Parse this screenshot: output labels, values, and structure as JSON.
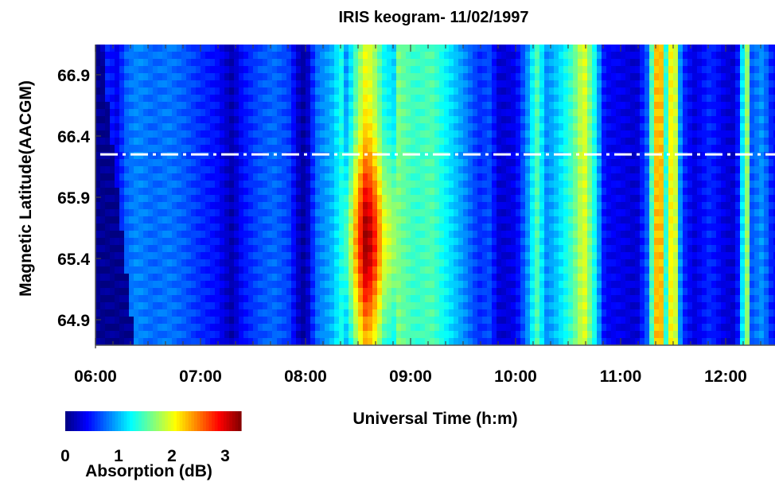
{
  "chart_data": {
    "type": "heatmap",
    "title": "IRIS keogram- 11/02/1997",
    "xlabel": "Universal Time (h:m)",
    "ylabel": "Magnetic Latitude(AACGM)",
    "x_ticks": [
      "06:00",
      "07:00",
      "08:00",
      "09:00",
      "10:00",
      "11:00",
      "12:00"
    ],
    "y_ticks": [
      "64.9",
      "65.4",
      "65.9",
      "66.4",
      "66.9"
    ],
    "xlim_hours": [
      6.0,
      12.5
    ],
    "ylim": [
      64.75,
      67.08
    ],
    "colorbar": {
      "label": "Absorption (dB)",
      "ticks": [
        "0",
        "1",
        "2",
        "3"
      ],
      "range": [
        0,
        3.3
      ],
      "colormap": "jet"
    },
    "reference_line": {
      "latitude": 66.25,
      "style": "dash-dot",
      "color": "#ffffff"
    },
    "time_profile": [
      {
        "t": 6.0,
        "v": 0.05
      },
      {
        "t": 6.05,
        "v": 0.05
      },
      {
        "t": 6.12,
        "v": 0.55
      },
      {
        "t": 6.2,
        "v": 0.35
      },
      {
        "t": 6.3,
        "v": 0.75
      },
      {
        "t": 6.4,
        "v": 0.85
      },
      {
        "t": 6.55,
        "v": 0.75
      },
      {
        "t": 6.7,
        "v": 0.8
      },
      {
        "t": 6.85,
        "v": 0.7
      },
      {
        "t": 7.0,
        "v": 0.55
      },
      {
        "t": 7.15,
        "v": 0.45
      },
      {
        "t": 7.3,
        "v": 0.15
      },
      {
        "t": 7.4,
        "v": 0.45
      },
      {
        "t": 7.55,
        "v": 0.65
      },
      {
        "t": 7.7,
        "v": 0.75
      },
      {
        "t": 7.85,
        "v": 0.6
      },
      {
        "t": 7.95,
        "v": 0.15
      },
      {
        "t": 8.0,
        "v": 0.1
      },
      {
        "t": 8.1,
        "v": 0.75
      },
      {
        "t": 8.25,
        "v": 1.0
      },
      {
        "t": 8.4,
        "v": 1.5
      },
      {
        "t": 8.5,
        "v": 2.6
      },
      {
        "t": 8.58,
        "v": 3.3
      },
      {
        "t": 8.66,
        "v": 2.8
      },
      {
        "t": 8.75,
        "v": 2.0
      },
      {
        "t": 8.9,
        "v": 1.6
      },
      {
        "t": 9.05,
        "v": 1.4
      },
      {
        "t": 9.2,
        "v": 1.5
      },
      {
        "t": 9.35,
        "v": 1.2
      },
      {
        "t": 9.5,
        "v": 0.9
      },
      {
        "t": 9.65,
        "v": 0.55
      },
      {
        "t": 9.75,
        "v": 0.65
      },
      {
        "t": 9.85,
        "v": 0.25
      },
      {
        "t": 10.0,
        "v": 0.35
      },
      {
        "t": 10.1,
        "v": 0.8
      },
      {
        "t": 10.2,
        "v": 1.5
      },
      {
        "t": 10.3,
        "v": 0.85
      },
      {
        "t": 10.45,
        "v": 1.2
      },
      {
        "t": 10.55,
        "v": 1.5
      },
      {
        "t": 10.65,
        "v": 2.0
      },
      {
        "t": 10.75,
        "v": 1.3
      },
      {
        "t": 10.85,
        "v": 0.4
      },
      {
        "t": 11.0,
        "v": 0.35
      },
      {
        "t": 11.15,
        "v": 0.25
      },
      {
        "t": 11.25,
        "v": 0.7
      },
      {
        "t": 11.32,
        "v": 1.9
      },
      {
        "t": 11.37,
        "v": 2.8
      },
      {
        "t": 11.42,
        "v": 1.2
      },
      {
        "t": 11.5,
        "v": 2.4
      },
      {
        "t": 11.58,
        "v": 0.6
      },
      {
        "t": 11.7,
        "v": 0.3
      },
      {
        "t": 11.85,
        "v": 0.55
      },
      {
        "t": 12.0,
        "v": 0.3
      },
      {
        "t": 12.1,
        "v": 0.25
      },
      {
        "t": 12.2,
        "v": 1.8
      },
      {
        "t": 12.25,
        "v": 0.7
      },
      {
        "t": 12.35,
        "v": 0.9
      },
      {
        "t": 12.45,
        "v": 0.45
      },
      {
        "t": 12.5,
        "v": 0.45
      }
    ]
  }
}
